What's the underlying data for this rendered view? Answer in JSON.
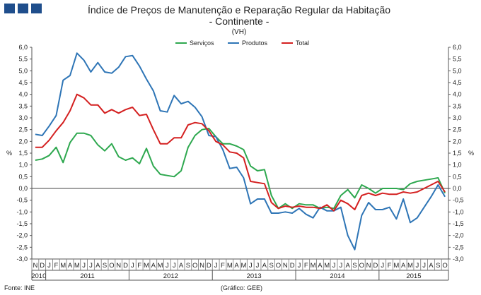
{
  "logo": {
    "name": "ine-logo"
  },
  "header": {
    "title": "Índice de Preços de Manutenção e Reparação Regular da Habitação",
    "subtitle": "- Continente -",
    "unit_note": "(VH)"
  },
  "footer": {
    "source": "Fonte: INE",
    "credit": "(Gráfico: GEE)"
  },
  "chart_data": {
    "type": "line",
    "title": "Índice de Preços de Manutenção e Reparação Regular da Habitação",
    "subtitle": "- Continente -",
    "ylabel_left": "%",
    "ylabel_right": "%",
    "ylim": [
      -3.0,
      6.0
    ],
    "ytick_step": 0.5,
    "yticks_left": [
      "6,0",
      "5,5",
      "5,0",
      "4,5",
      "4,0",
      "3,5",
      "3,0",
      "2,5",
      "2,0",
      "1,5",
      "1,0",
      "0,5",
      "0,0",
      "-0,5",
      "-1,0",
      "-1,5",
      "-2,0",
      "-2,5",
      "-3,0"
    ],
    "yticks_right": [
      "6,0",
      "5,5",
      "5,0",
      "4,5",
      "4,0",
      "3,5",
      "3,0",
      "2,5",
      "2,0",
      "1,5",
      "1,0",
      "0,5",
      "0,0",
      "-0,5",
      "-1,0",
      "-1,5",
      "-2,0",
      "-2,5",
      "-3,0"
    ],
    "grid": false,
    "legend_position": "top-center",
    "x_months": [
      "N",
      "D",
      "J",
      "F",
      "M",
      "A",
      "M",
      "J",
      "J",
      "A",
      "S",
      "O",
      "N",
      "D",
      "J",
      "F",
      "M",
      "A",
      "M",
      "J",
      "J",
      "A",
      "S",
      "O",
      "N",
      "D",
      "J",
      "F",
      "M",
      "A",
      "M",
      "J",
      "J",
      "A",
      "S",
      "O",
      "N",
      "D",
      "J",
      "F",
      "M",
      "A",
      "M",
      "J",
      "J",
      "A",
      "S",
      "O",
      "N",
      "D",
      "J",
      "F",
      "M",
      "A",
      "M",
      "J",
      "J",
      "A",
      "S",
      "O"
    ],
    "x_years": [
      {
        "label": "2010",
        "start": 0,
        "end": 1
      },
      {
        "label": "2011",
        "start": 2,
        "end": 13
      },
      {
        "label": "2012",
        "start": 14,
        "end": 25
      },
      {
        "label": "2013",
        "start": 26,
        "end": 37
      },
      {
        "label": "2014",
        "start": 38,
        "end": 49
      },
      {
        "label": "2015",
        "start": 50,
        "end": 59
      }
    ],
    "series": [
      {
        "name": "Serviços",
        "color": "#2ea84f",
        "values": [
          1.2,
          1.25,
          1.4,
          1.75,
          1.1,
          1.95,
          2.35,
          2.35,
          2.25,
          1.85,
          1.6,
          1.9,
          1.35,
          1.2,
          1.3,
          1.05,
          1.7,
          0.95,
          0.6,
          0.55,
          0.5,
          0.75,
          1.75,
          2.25,
          2.5,
          2.55,
          2.2,
          1.9,
          1.9,
          1.8,
          1.65,
          0.95,
          0.75,
          0.8,
          -0.3,
          -0.85,
          -0.65,
          -0.85,
          -0.65,
          -0.7,
          -0.7,
          -0.85,
          -0.8,
          -0.85,
          -0.3,
          -0.05,
          -0.4,
          0.15,
          0.0,
          -0.2,
          0.0,
          0.0,
          0.0,
          -0.05,
          0.2,
          0.3,
          0.35,
          0.4,
          0.45,
          -0.2
        ]
      },
      {
        "name": "Produtos",
        "color": "#2e75b6",
        "values": [
          2.3,
          2.25,
          2.65,
          3.1,
          4.6,
          4.8,
          5.75,
          5.45,
          4.95,
          5.35,
          4.95,
          4.9,
          5.15,
          5.6,
          5.65,
          5.2,
          4.65,
          4.15,
          3.3,
          3.25,
          3.95,
          3.6,
          3.7,
          3.45,
          3.05,
          2.25,
          2.2,
          1.65,
          0.85,
          0.9,
          0.45,
          -0.65,
          -0.45,
          -0.45,
          -1.05,
          -1.05,
          -1.0,
          -1.05,
          -0.85,
          -1.1,
          -1.25,
          -0.8,
          -0.95,
          -0.95,
          -0.8,
          -2.0,
          -2.6,
          -1.15,
          -0.6,
          -0.9,
          -0.9,
          -0.8,
          -1.3,
          -0.45,
          -1.45,
          -1.25,
          -0.8,
          -0.35,
          0.15,
          -0.35
        ]
      },
      {
        "name": "Total",
        "color": "#d42020",
        "values": [
          1.75,
          1.75,
          2.05,
          2.45,
          2.8,
          3.3,
          4.0,
          3.85,
          3.55,
          3.55,
          3.2,
          3.35,
          3.2,
          3.35,
          3.45,
          3.1,
          3.15,
          2.5,
          1.9,
          1.9,
          2.15,
          2.15,
          2.7,
          2.8,
          2.75,
          2.45,
          2.0,
          1.85,
          1.55,
          1.5,
          1.3,
          0.3,
          0.25,
          0.2,
          -0.6,
          -0.85,
          -0.75,
          -0.8,
          -0.75,
          -0.8,
          -0.8,
          -0.85,
          -0.7,
          -0.95,
          -0.5,
          -0.65,
          -0.9,
          -0.3,
          -0.2,
          -0.3,
          -0.2,
          -0.25,
          -0.25,
          -0.15,
          -0.2,
          -0.15,
          0.0,
          0.15,
          0.3,
          -0.15
        ]
      }
    ]
  }
}
